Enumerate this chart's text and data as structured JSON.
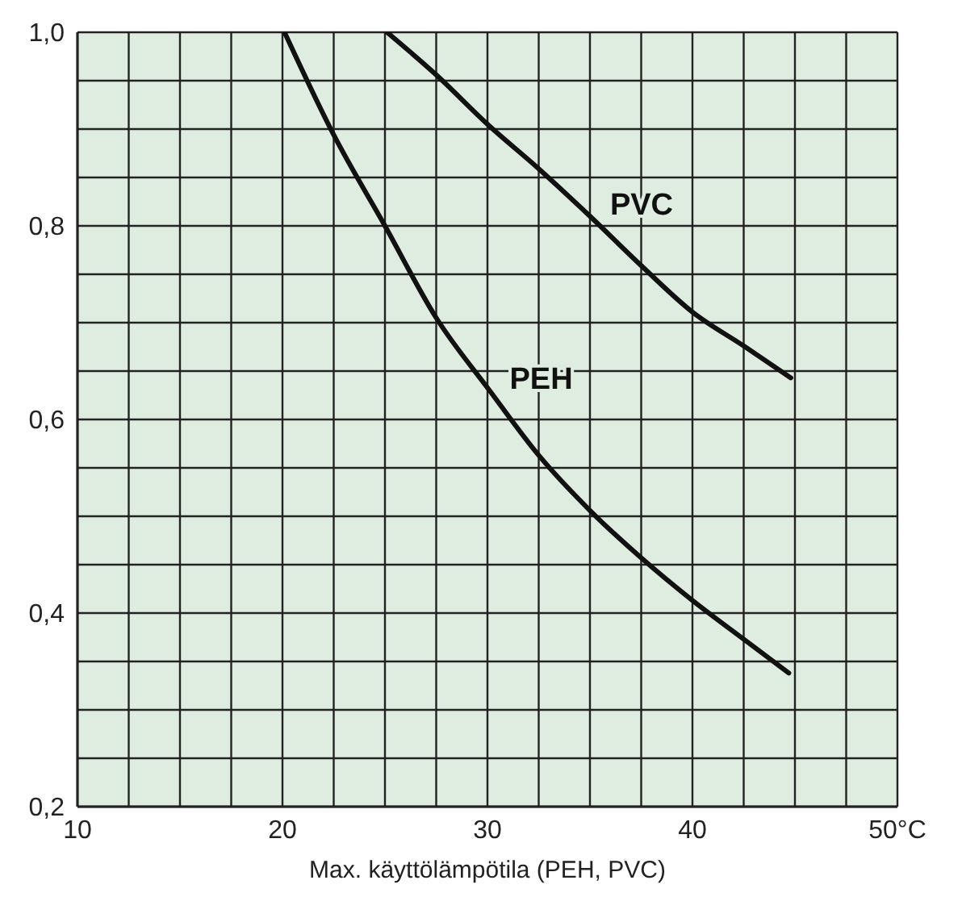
{
  "chart_data": {
    "type": "line",
    "xlabel": "Max. käyttölämpötila (PEH, PVC)",
    "xlim": [
      10,
      50
    ],
    "ylim": [
      0.2,
      1.0
    ],
    "xticks": [
      10,
      {
        "value": 12.5,
        "label": null
      },
      {
        "value": 15,
        "label": null
      },
      {
        "value": 17.5,
        "label": null
      },
      20,
      {
        "value": 22.5,
        "label": null
      },
      {
        "value": 25,
        "label": null
      },
      {
        "value": 27.5,
        "label": null
      },
      30,
      {
        "value": 32.5,
        "label": null
      },
      {
        "value": 35,
        "label": null
      },
      {
        "value": 37.5,
        "label": null
      },
      40,
      {
        "value": 42.5,
        "label": null
      },
      {
        "value": 45,
        "label": null
      },
      {
        "value": 47.5,
        "label": null
      },
      {
        "value": 50,
        "label": "50°C"
      }
    ],
    "yticks": [
      {
        "value": 0.2,
        "label": "0,2"
      },
      {
        "value": 0.25,
        "label": null
      },
      {
        "value": 0.3,
        "label": null
      },
      {
        "value": 0.35,
        "label": null
      },
      {
        "value": 0.4,
        "label": "0,4"
      },
      {
        "value": 0.45,
        "label": null
      },
      {
        "value": 0.5,
        "label": null
      },
      {
        "value": 0.55,
        "label": null
      },
      {
        "value": 0.6,
        "label": "0,6"
      },
      {
        "value": 0.65,
        "label": null
      },
      {
        "value": 0.7,
        "label": null
      },
      {
        "value": 0.75,
        "label": null
      },
      {
        "value": 0.8,
        "label": "0,8"
      },
      {
        "value": 0.85,
        "label": null
      },
      {
        "value": 0.9,
        "label": null
      },
      {
        "value": 0.95,
        "label": null
      },
      {
        "value": 1.0,
        "label": "1,0"
      }
    ],
    "grid": true,
    "legend": false,
    "marker": "none",
    "line_style": "solid",
    "series": [
      {
        "name": "PVC",
        "color": "#111111",
        "x": [
          25.1,
          27.5,
          30,
          32.5,
          35,
          37.5,
          40,
          42.5,
          44.8
        ],
        "values": [
          1.0,
          0.956,
          0.905,
          0.859,
          0.81,
          0.759,
          0.711,
          0.676,
          0.643
        ]
      },
      {
        "name": "PEH",
        "color": "#111111",
        "x": [
          20.1,
          22.5,
          25,
          27.5,
          30.1,
          32.5,
          35,
          37.5,
          40,
          42.5,
          44.7
        ],
        "values": [
          1.0,
          0.894,
          0.8,
          0.705,
          0.63,
          0.563,
          0.506,
          0.457,
          0.413,
          0.373,
          0.338
        ]
      }
    ]
  }
}
